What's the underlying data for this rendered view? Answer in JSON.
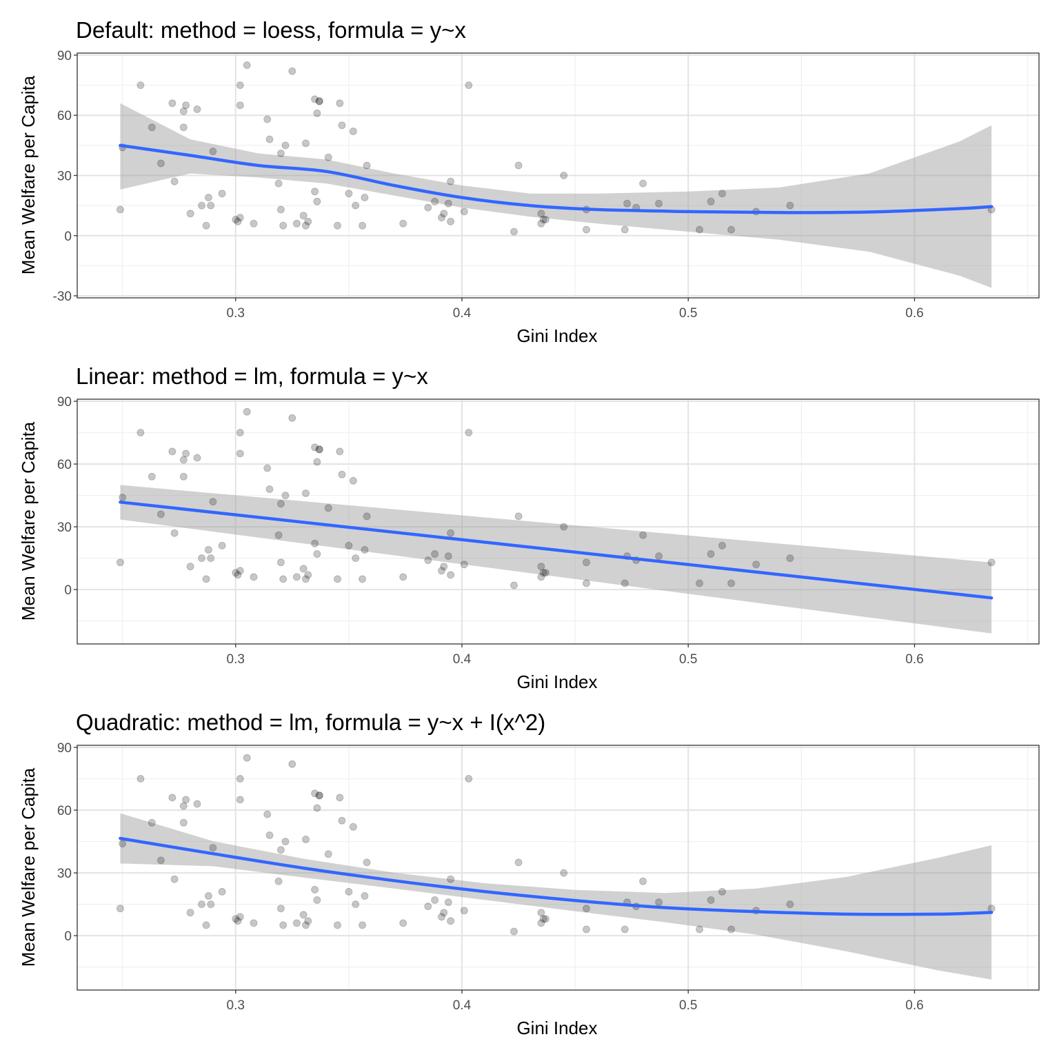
{
  "chart_data": [
    {
      "type": "scatter",
      "title": "Default: method = loess, formula = y~x",
      "xlabel": "Gini Index",
      "ylabel": "Mean Welfare per Capita",
      "xlim": [
        0.23,
        0.655
      ],
      "ylim": [
        -31,
        91
      ],
      "xticks": [
        0.3,
        0.4,
        0.5,
        0.6
      ],
      "xtick_labels": [
        "0.3",
        "0.4",
        "0.5",
        "0.6"
      ],
      "yticks": [
        -30,
        0,
        30,
        60,
        90
      ],
      "ytick_labels": [
        "-30",
        "0",
        "30",
        "60",
        "90"
      ],
      "grid": true,
      "smooth": {
        "method": "loess",
        "x": [
          0.249,
          0.28,
          0.31,
          0.34,
          0.37,
          0.4,
          0.43,
          0.46,
          0.5,
          0.54,
          0.58,
          0.62,
          0.634
        ],
        "y": [
          45,
          40,
          35,
          32,
          25,
          19,
          15,
          13,
          12,
          11.5,
          11.8,
          13.5,
          14.5
        ],
        "lower": [
          23,
          31,
          29,
          26,
          20,
          14,
          9.5,
          6,
          2,
          -2,
          -8,
          -20,
          -26
        ],
        "upper": [
          66,
          48,
          41,
          38,
          31,
          25,
          21,
          21,
          22,
          24,
          31,
          47,
          55
        ]
      }
    },
    {
      "type": "scatter",
      "title": "Linear: method = lm, formula = y~x",
      "xlabel": "Gini Index",
      "ylabel": "Mean Welfare per Capita",
      "xlim": [
        0.23,
        0.655
      ],
      "ylim": [
        -26,
        91
      ],
      "xticks": [
        0.3,
        0.4,
        0.5,
        0.6
      ],
      "xtick_labels": [
        "0.3",
        "0.4",
        "0.5",
        "0.6"
      ],
      "yticks": [
        0,
        30,
        60,
        90
      ],
      "ytick_labels": [
        "0",
        "30",
        "60",
        "90"
      ],
      "grid": true,
      "smooth": {
        "method": "lm",
        "x": [
          0.249,
          0.634
        ],
        "y": [
          41.8,
          -4
        ],
        "lower": [
          33.5,
          -21
        ],
        "upper": [
          50,
          13
        ]
      }
    },
    {
      "type": "scatter",
      "title": "Quadratic: method = lm, formula = y~x + I(x^2)",
      "xlabel": "Gini Index",
      "ylabel": "Mean Welfare per Capita",
      "xlim": [
        0.23,
        0.655
      ],
      "ylim": [
        -26,
        91
      ],
      "xticks": [
        0.3,
        0.4,
        0.5,
        0.6
      ],
      "xtick_labels": [
        "0.3",
        "0.4",
        "0.5",
        "0.6"
      ],
      "yticks": [
        0,
        30,
        60,
        90
      ],
      "ytick_labels": [
        "0",
        "30",
        "60",
        "90"
      ],
      "grid": true,
      "smooth": {
        "method": "lm",
        "x": [
          0.249,
          0.29,
          0.33,
          0.37,
          0.41,
          0.45,
          0.49,
          0.53,
          0.57,
          0.61,
          0.634
        ],
        "y": [
          46.5,
          39.2,
          32.3,
          26.3,
          21.1,
          16.8,
          13.4,
          11.5,
          10.3,
          10.3,
          11.1
        ],
        "lower": [
          34.5,
          33.2,
          27.8,
          22.5,
          17.1,
          11.7,
          6.4,
          0.5,
          -7.5,
          -16.5,
          -21
        ],
        "upper": [
          58.5,
          45.2,
          36.8,
          30.1,
          25.1,
          21.9,
          20.4,
          22.5,
          28.1,
          37.1,
          43.2
        ]
      }
    }
  ],
  "points": {
    "x": [
      0.249,
      0.25,
      0.258,
      0.263,
      0.267,
      0.272,
      0.273,
      0.277,
      0.277,
      0.278,
      0.28,
      0.283,
      0.285,
      0.287,
      0.288,
      0.289,
      0.29,
      0.294,
      0.3,
      0.301,
      0.302,
      0.302,
      0.302,
      0.305,
      0.308,
      0.314,
      0.315,
      0.319,
      0.32,
      0.32,
      0.321,
      0.322,
      0.325,
      0.327,
      0.33,
      0.331,
      0.331,
      0.332,
      0.335,
      0.335,
      0.336,
      0.336,
      0.337,
      0.337,
      0.341,
      0.345,
      0.346,
      0.347,
      0.35,
      0.352,
      0.353,
      0.356,
      0.357,
      0.358,
      0.374,
      0.385,
      0.388,
      0.391,
      0.392,
      0.394,
      0.395,
      0.395,
      0.401,
      0.403,
      0.423,
      0.425,
      0.435,
      0.435,
      0.436,
      0.437,
      0.445,
      0.455,
      0.455,
      0.472,
      0.473,
      0.477,
      0.48,
      0.487,
      0.505,
      0.51,
      0.515,
      0.519,
      0.53,
      0.545,
      0.634
    ],
    "y": [
      13,
      44,
      75,
      54,
      36,
      66,
      27,
      62,
      54,
      65,
      11,
      63,
      15,
      5,
      19,
      15,
      42,
      21,
      8,
      7,
      65,
      75,
      9,
      85,
      6,
      58,
      48,
      26,
      41,
      13,
      5,
      45,
      82,
      6,
      10,
      46,
      5,
      7,
      68,
      22,
      17,
      61,
      67,
      67,
      39,
      5,
      66,
      55,
      21,
      52,
      15,
      5,
      19,
      35,
      6,
      14,
      17,
      9,
      11,
      16,
      7,
      27,
      12,
      75,
      2,
      35,
      11,
      6,
      8,
      8,
      30,
      13,
      3,
      3,
      16,
      14,
      26,
      16,
      3,
      17,
      21,
      3,
      12,
      15,
      13
    ]
  }
}
